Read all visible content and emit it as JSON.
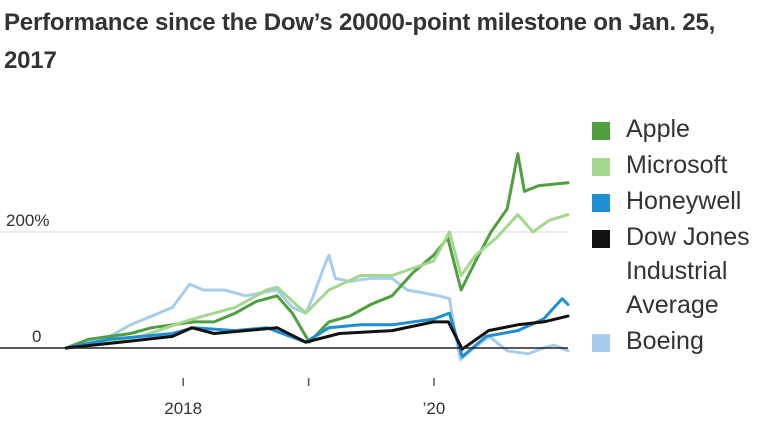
{
  "title": "Performance since the Dow’s 20000-point milestone on Jan. 25, 2017",
  "chart_data": {
    "type": "line",
    "title": "Performance since the Dow’s 20000-point milestone on Jan. 25, 2017",
    "ylim": [
      -25,
      350
    ],
    "y_ticks": [
      {
        "value": 0,
        "label": "0"
      },
      {
        "value": 200,
        "label": "200%"
      }
    ],
    "xlim": [
      "2017-01-25",
      "2021-01-25"
    ],
    "x_ticks": [
      {
        "value": "2018-01-01",
        "label": "2018"
      },
      {
        "value": "2019-01-01",
        "label": ""
      },
      {
        "value": "2020-01-01",
        "label": "’20"
      }
    ],
    "grid": "horizontal at 200%",
    "legend_position": "right",
    "series": [
      {
        "name": "Boeing",
        "color": "#a7cdec",
        "x": [
          "2017-01-25",
          "2017-04-01",
          "2017-06-01",
          "2017-08-01",
          "2017-10-01",
          "2017-12-01",
          "2018-01-20",
          "2018-03-01",
          "2018-05-01",
          "2018-07-01",
          "2018-08-15",
          "2018-10-01",
          "2018-11-15",
          "2018-12-24",
          "2019-01-15",
          "2019-02-15",
          "2019-03-01",
          "2019-03-20",
          "2019-05-01",
          "2019-07-01",
          "2019-09-01",
          "2019-10-15",
          "2019-12-01",
          "2020-01-15",
          "2020-02-15",
          "2020-03-01",
          "2020-03-18",
          "2020-04-15",
          "2020-06-10",
          "2020-08-01",
          "2020-10-01",
          "2020-11-15",
          "2020-12-15",
          "2021-01-25"
        ],
        "values": [
          0,
          10,
          20,
          40,
          55,
          70,
          110,
          100,
          100,
          90,
          95,
          100,
          70,
          60,
          90,
          140,
          160,
          120,
          115,
          120,
          120,
          100,
          95,
          90,
          85,
          30,
          -20,
          -5,
          20,
          -5,
          -10,
          0,
          5,
          -5
        ]
      },
      {
        "name": "Apple",
        "color": "#4f9f3f",
        "x": [
          "2017-01-25",
          "2017-04-01",
          "2017-06-01",
          "2017-08-01",
          "2017-10-01",
          "2017-12-01",
          "2018-02-01",
          "2018-04-01",
          "2018-06-01",
          "2018-08-01",
          "2018-10-01",
          "2018-11-15",
          "2019-01-03",
          "2019-03-01",
          "2019-05-01",
          "2019-07-01",
          "2019-09-01",
          "2019-11-01",
          "2019-12-31",
          "2020-02-10",
          "2020-03-20",
          "2020-05-01",
          "2020-06-15",
          "2020-08-01",
          "2020-09-01",
          "2020-09-20",
          "2020-11-01",
          "2021-01-25"
        ],
        "values": [
          0,
          15,
          20,
          25,
          35,
          40,
          45,
          45,
          60,
          80,
          90,
          60,
          10,
          45,
          55,
          75,
          90,
          130,
          160,
          190,
          100,
          150,
          200,
          240,
          335,
          270,
          280,
          285
        ]
      },
      {
        "name": "Microsoft",
        "color": "#a4d88e",
        "x": [
          "2017-01-25",
          "2017-05-01",
          "2017-09-01",
          "2018-01-01",
          "2018-03-01",
          "2018-06-01",
          "2018-09-01",
          "2018-10-01",
          "2018-12-24",
          "2019-03-01",
          "2019-06-01",
          "2019-09-01",
          "2019-12-31",
          "2020-02-15",
          "2020-03-20",
          "2020-05-01",
          "2020-07-01",
          "2020-09-01",
          "2020-10-15",
          "2020-12-01",
          "2021-01-25"
        ],
        "values": [
          0,
          10,
          20,
          45,
          55,
          70,
          100,
          105,
          60,
          100,
          125,
          125,
          150,
          200,
          125,
          160,
          190,
          230,
          200,
          220,
          230
        ]
      },
      {
        "name": "Honeywell",
        "color": "#1f8fd3",
        "x": [
          "2017-01-25",
          "2017-06-01",
          "2017-12-01",
          "2018-02-01",
          "2018-06-01",
          "2018-09-01",
          "2018-12-24",
          "2019-03-01",
          "2019-06-01",
          "2019-09-01",
          "2019-12-31",
          "2020-02-15",
          "2020-03-23",
          "2020-06-01",
          "2020-09-01",
          "2020-11-15",
          "2021-01-08",
          "2021-01-25"
        ],
        "values": [
          0,
          15,
          25,
          35,
          30,
          35,
          10,
          35,
          40,
          40,
          50,
          60,
          -15,
          20,
          30,
          50,
          85,
          75
        ]
      },
      {
        "name": "Dow Jones Industrial Average",
        "color": "#111111",
        "x": [
          "2017-01-25",
          "2017-06-01",
          "2017-12-01",
          "2018-01-26",
          "2018-04-01",
          "2018-10-01",
          "2018-12-24",
          "2019-04-01",
          "2019-09-01",
          "2019-12-31",
          "2020-02-12",
          "2020-03-23",
          "2020-06-08",
          "2020-09-01",
          "2020-11-15",
          "2021-01-25"
        ],
        "values": [
          0,
          8,
          20,
          35,
          25,
          35,
          10,
          25,
          30,
          45,
          45,
          -2,
          30,
          40,
          45,
          55
        ]
      }
    ]
  },
  "legend": [
    {
      "name": "Apple",
      "color": "#4f9f3f"
    },
    {
      "name": "Microsoft",
      "color": "#a4d88e"
    },
    {
      "name": "Honeywell",
      "color": "#1f8fd3"
    },
    {
      "name": "Dow Jones Industrial Average",
      "color": "#111111"
    },
    {
      "name": "Boeing",
      "color": "#a7cdec"
    }
  ]
}
